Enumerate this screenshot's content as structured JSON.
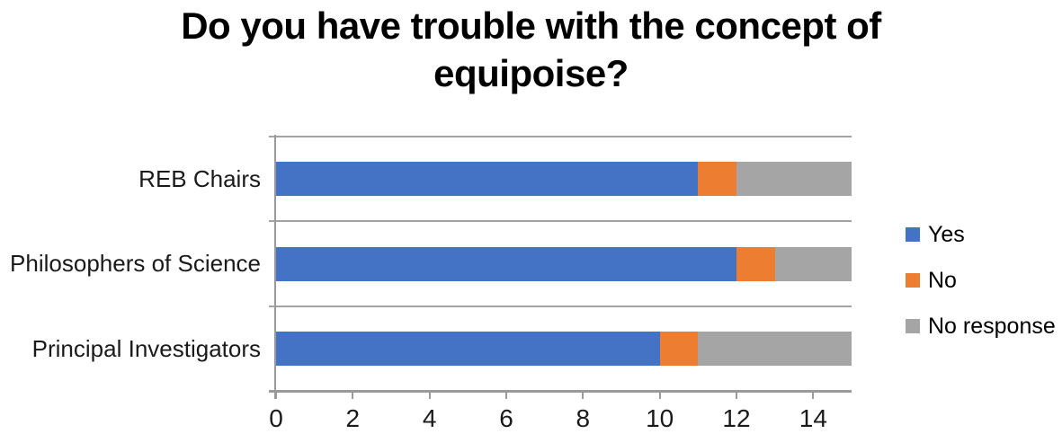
{
  "chart_data": {
    "type": "bar",
    "orientation": "horizontal_stacked",
    "title": "Do you have trouble with the concept of equipoise?",
    "title_lines": [
      "Do you have trouble with the concept of",
      "equipoise?"
    ],
    "categories": [
      "REB Chairs",
      "Philosophers of Science",
      "Principal Investigators"
    ],
    "series": [
      {
        "name": "Yes",
        "color": "#4472C4",
        "values": [
          11,
          12,
          10
        ]
      },
      {
        "name": "No",
        "color": "#ED7D31",
        "values": [
          1,
          1,
          1
        ]
      },
      {
        "name": "No response",
        "color": "#A5A5A5",
        "values": [
          3,
          2,
          4
        ]
      }
    ],
    "totals_per_category": [
      15,
      15,
      15
    ],
    "xlim": [
      0,
      15
    ],
    "xticks": [
      0,
      2,
      4,
      6,
      8,
      10,
      12,
      14
    ],
    "xlabel": "",
    "ylabel": "",
    "legend_position": "right",
    "grid": "row_separators_on",
    "colors": {
      "gridline": "#A3A3A3",
      "axis": "#9A9A9A",
      "title_text": "#000000",
      "label_text": "#1a1a1a",
      "background": "#FFFFFF"
    }
  }
}
